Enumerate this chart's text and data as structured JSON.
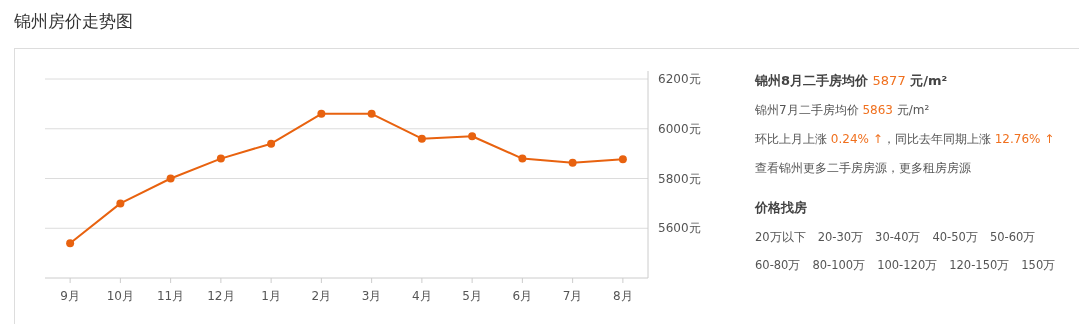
{
  "chart_data": [
    {
      "type": "line",
      "title": "锦州房价走势图",
      "categories": [
        "9月",
        "10月",
        "11月",
        "12月",
        "1月",
        "2月",
        "3月",
        "4月",
        "5月",
        "6月",
        "7月",
        "8月"
      ],
      "values": [
        5540,
        5700,
        5800,
        5880,
        5940,
        6060,
        6060,
        5960,
        5970,
        5880,
        5863,
        5877
      ],
      "color": "#e8620f",
      "ylim": [
        5400,
        6200
      ],
      "yticks": [
        {
          "value": 5600,
          "label": "5600元"
        },
        {
          "value": 5800,
          "label": "5800元"
        },
        {
          "value": 6000,
          "label": "6000元"
        },
        {
          "value": 6200,
          "label": "6200元"
        }
      ],
      "grid": "y",
      "marker": "circle"
    },
    {
      "type": "other",
      "title": "锦州8月二手房均价 5877 元/m²",
      "subtitle": "价格找房",
      "annotations": [
        "锦州7月二手房均价 5863 元/m²",
        "环比上月上涨 0.24% ↑，同比去年同期上涨 12.76% ↑",
        "查看锦州更多二手房房源，更多租房房源",
        "20万以下",
        "20-30万",
        "30-40万",
        "40-50万",
        "50-60万",
        "60-80万",
        "80-100万",
        "100-120万",
        "120-150万",
        "150万"
      ]
    }
  ]
}
